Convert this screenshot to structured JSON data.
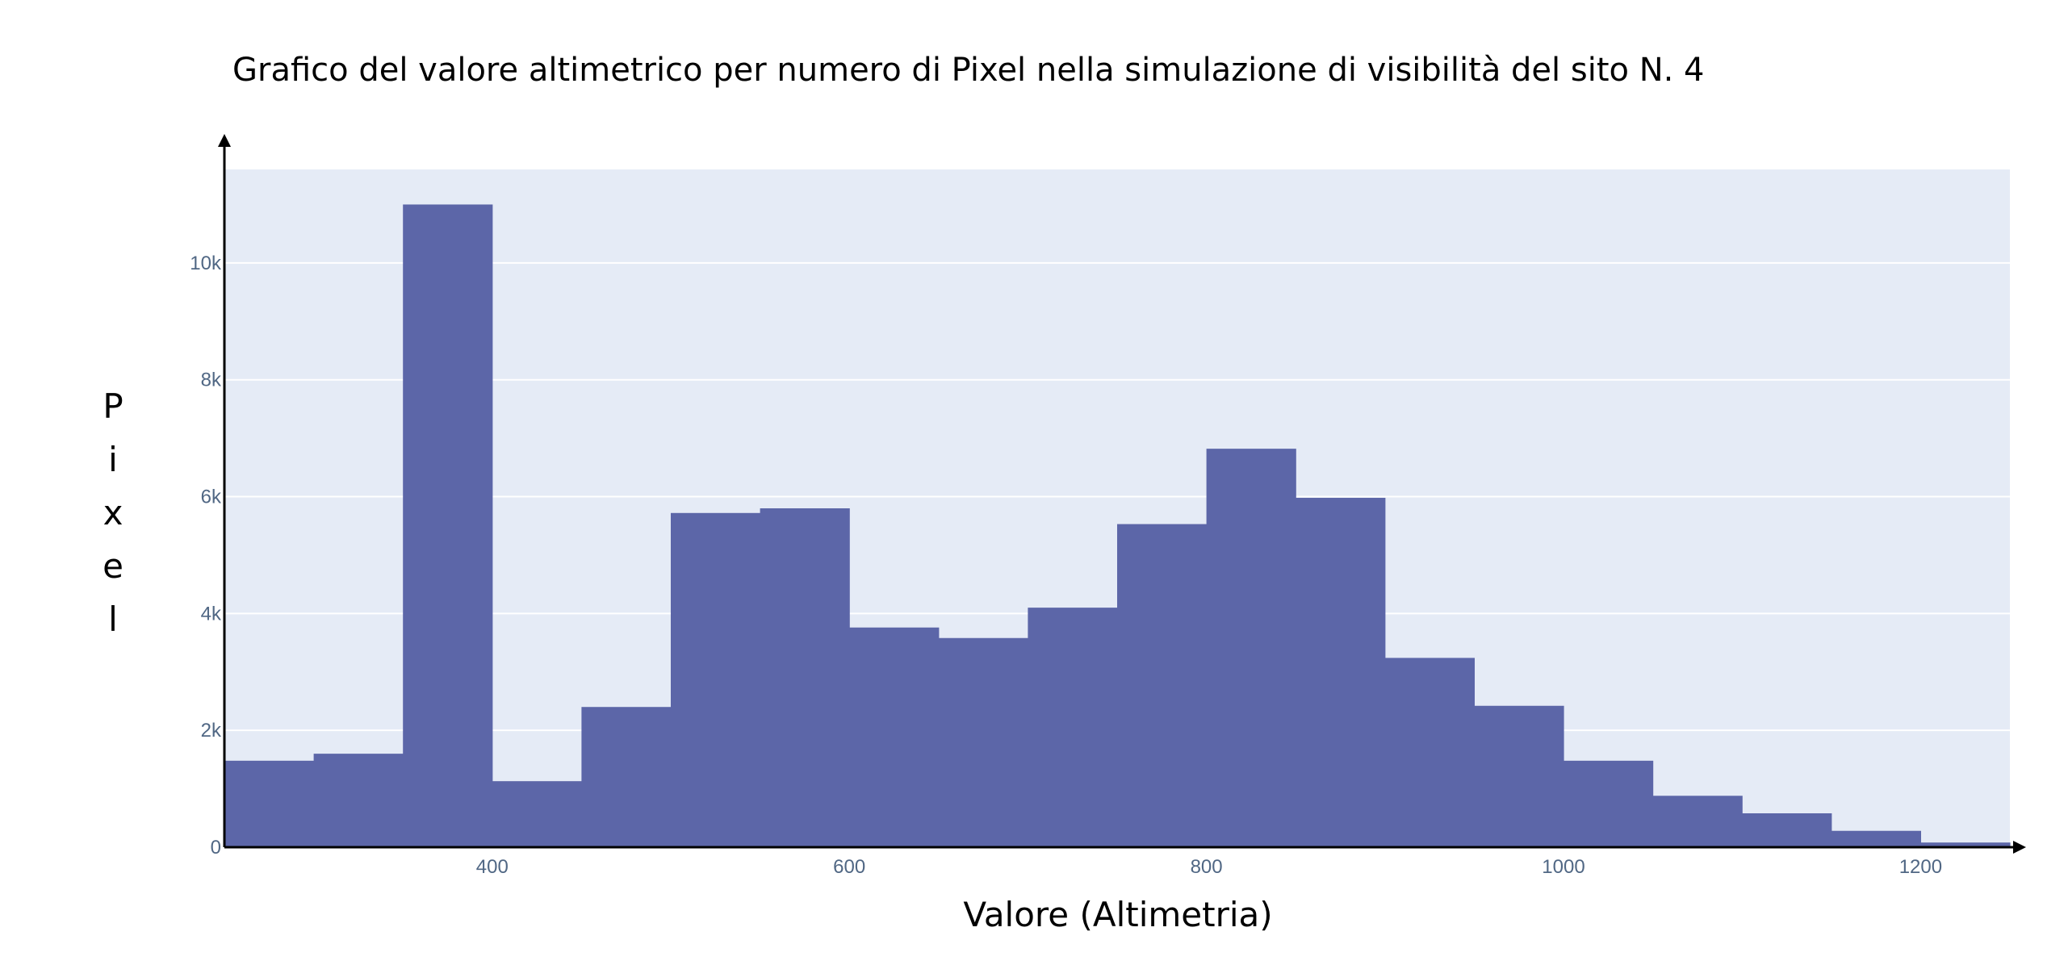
{
  "chart_data": {
    "type": "bar",
    "title": "Grafico del valore altimetrico per numero di Pixel nella simulazione di visibilità del sito N. 4",
    "xlabel": "Valore (Altimetria)",
    "ylabel": "Pixel",
    "bin_width": 50,
    "bins": [
      {
        "start": 250,
        "end": 300,
        "value": 1480
      },
      {
        "start": 300,
        "end": 350,
        "value": 1600
      },
      {
        "start": 350,
        "end": 400,
        "value": 11000
      },
      {
        "start": 400,
        "end": 450,
        "value": 1130
      },
      {
        "start": 450,
        "end": 500,
        "value": 2400
      },
      {
        "start": 500,
        "end": 550,
        "value": 5720
      },
      {
        "start": 550,
        "end": 600,
        "value": 5800
      },
      {
        "start": 600,
        "end": 650,
        "value": 3760
      },
      {
        "start": 650,
        "end": 700,
        "value": 3580
      },
      {
        "start": 700,
        "end": 750,
        "value": 4100
      },
      {
        "start": 750,
        "end": 800,
        "value": 5530
      },
      {
        "start": 800,
        "end": 850,
        "value": 6820
      },
      {
        "start": 850,
        "end": 900,
        "value": 5980
      },
      {
        "start": 900,
        "end": 950,
        "value": 3240
      },
      {
        "start": 950,
        "end": 1000,
        "value": 2420
      },
      {
        "start": 1000,
        "end": 1050,
        "value": 1480
      },
      {
        "start": 1050,
        "end": 1100,
        "value": 880
      },
      {
        "start": 1100,
        "end": 1150,
        "value": 580
      },
      {
        "start": 1150,
        "end": 1200,
        "value": 280
      },
      {
        "start": 1200,
        "end": 1250,
        "value": 80
      }
    ],
    "xlim": [
      250,
      1250
    ],
    "ylim": [
      0,
      11600
    ],
    "x_ticks": [
      {
        "value": 400,
        "label": "400"
      },
      {
        "value": 600,
        "label": "600"
      },
      {
        "value": 800,
        "label": "800"
      },
      {
        "value": 1000,
        "label": "1000"
      },
      {
        "value": 1200,
        "label": "1200"
      }
    ],
    "y_ticks": [
      {
        "value": 0,
        "label": "0"
      },
      {
        "value": 2000,
        "label": "2k"
      },
      {
        "value": 4000,
        "label": "4k"
      },
      {
        "value": 6000,
        "label": "6k"
      },
      {
        "value": 8000,
        "label": "8k"
      },
      {
        "value": 10000,
        "label": "10k"
      }
    ],
    "grid": true,
    "legend": false,
    "colors": {
      "bar": "#5c66a8",
      "plot_background": "#e5ebf6",
      "gridline": "#ffffff",
      "tick_text": "#506784",
      "axis": "#000000"
    }
  }
}
